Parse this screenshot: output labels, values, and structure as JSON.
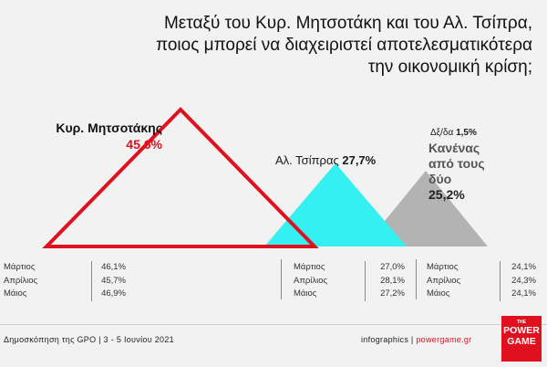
{
  "title": {
    "line1": "Μεταξύ του Κυρ. Μητσοτάκη και του Αλ. Τσίπρα,",
    "line2": "ποιος μπορεί να διαχειριστεί αποτελεσματικότερα",
    "line3": "την οικονομική κρίση;"
  },
  "chart_data": {
    "type": "area",
    "series": [
      {
        "name": "Κυρ. Μητσοτάκης",
        "value": "45,6%",
        "number": 45.6,
        "color": "#e0101e",
        "style": "outline"
      },
      {
        "name": "Αλ. Τσίπρας",
        "value": "27,7%",
        "number": 27.7,
        "color": "#35f0f0",
        "style": "filled"
      },
      {
        "name": "Κανένας από τους δύο",
        "value": "25,2%",
        "number": 25.2,
        "color": "#b3b3b3",
        "style": "filled"
      }
    ],
    "extra": {
      "label": "Δξ/δα",
      "value": "1,5%"
    },
    "history": [
      {
        "rows": [
          {
            "month": "Μάρτιος",
            "value": "46,1%"
          },
          {
            "month": "Απρίλιος",
            "value": "45,7%"
          },
          {
            "month": "Μάιος",
            "value": "46,9%"
          }
        ]
      },
      {
        "rows": [
          {
            "month": "Μάρτιος",
            "value": "27,0%"
          },
          {
            "month": "Απρίλιος",
            "value": "28,1%"
          },
          {
            "month": "Μάιος",
            "value": "27,2%"
          }
        ]
      },
      {
        "rows": [
          {
            "month": "Μάρτιος",
            "value": "24,1%"
          },
          {
            "month": "Απρίλιος",
            "value": "24,3%"
          },
          {
            "month": "Μάιος",
            "value": "24,1%"
          }
        ]
      }
    ]
  },
  "labels": {
    "mits_name": "Κυρ. Μητσοτάκης",
    "mits_value": "45,6%",
    "tsip_name": "Αλ. Τσίπρας",
    "tsip_value": "27,7%",
    "dk_label": "Δξ/δα",
    "dk_value": "1,5%",
    "none_line1": "Κανένας",
    "none_line2": "από τους",
    "none_line3": "δύο",
    "none_value": "25,2%"
  },
  "footer": {
    "source": "Δημοσκόπηση της GPO | 3 - 5 Ιουνίου 2021",
    "credit": "infographics | ",
    "site": "powergame.gr"
  },
  "logo": {
    "the": "THE",
    "line1": "POWER",
    "line2": "GAME"
  }
}
